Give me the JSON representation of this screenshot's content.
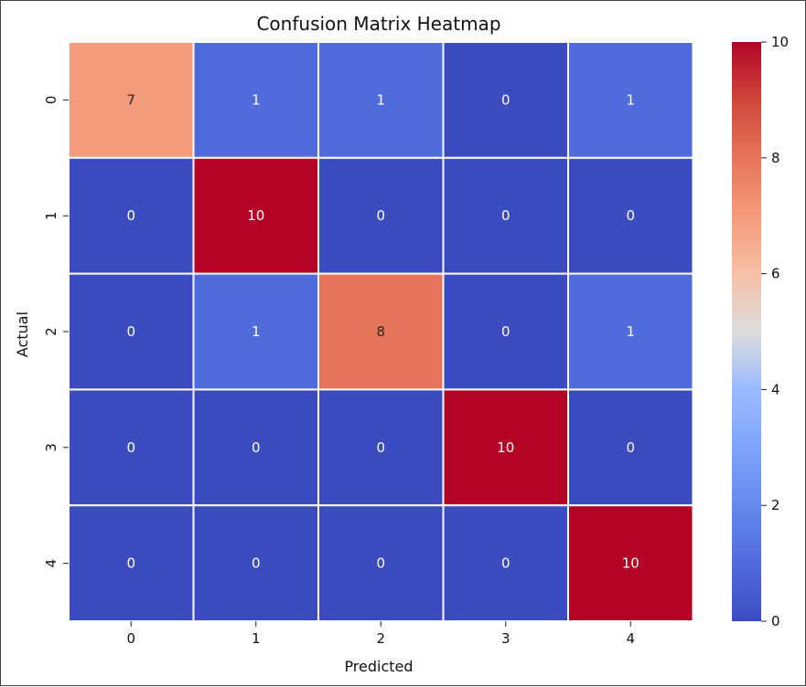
{
  "chart_data": {
    "type": "heatmap",
    "title": "Confusion Matrix Heatmap",
    "xlabel": "Predicted",
    "ylabel": "Actual",
    "x_categories": [
      "0",
      "1",
      "2",
      "3",
      "4"
    ],
    "y_categories": [
      "0",
      "1",
      "2",
      "3",
      "4"
    ],
    "values": [
      [
        7,
        1,
        1,
        0,
        1
      ],
      [
        0,
        10,
        0,
        0,
        0
      ],
      [
        0,
        1,
        8,
        0,
        1
      ],
      [
        0,
        0,
        0,
        10,
        0
      ],
      [
        0,
        0,
        0,
        0,
        10
      ]
    ],
    "colormap": "coolwarm",
    "vmin": 0,
    "vmax": 10,
    "colorbar_ticks": [
      "0",
      "2",
      "4",
      "6",
      "8",
      "10"
    ],
    "colorbar_tick_values": [
      0,
      2,
      4,
      6,
      8,
      10
    ],
    "annotations": true
  }
}
